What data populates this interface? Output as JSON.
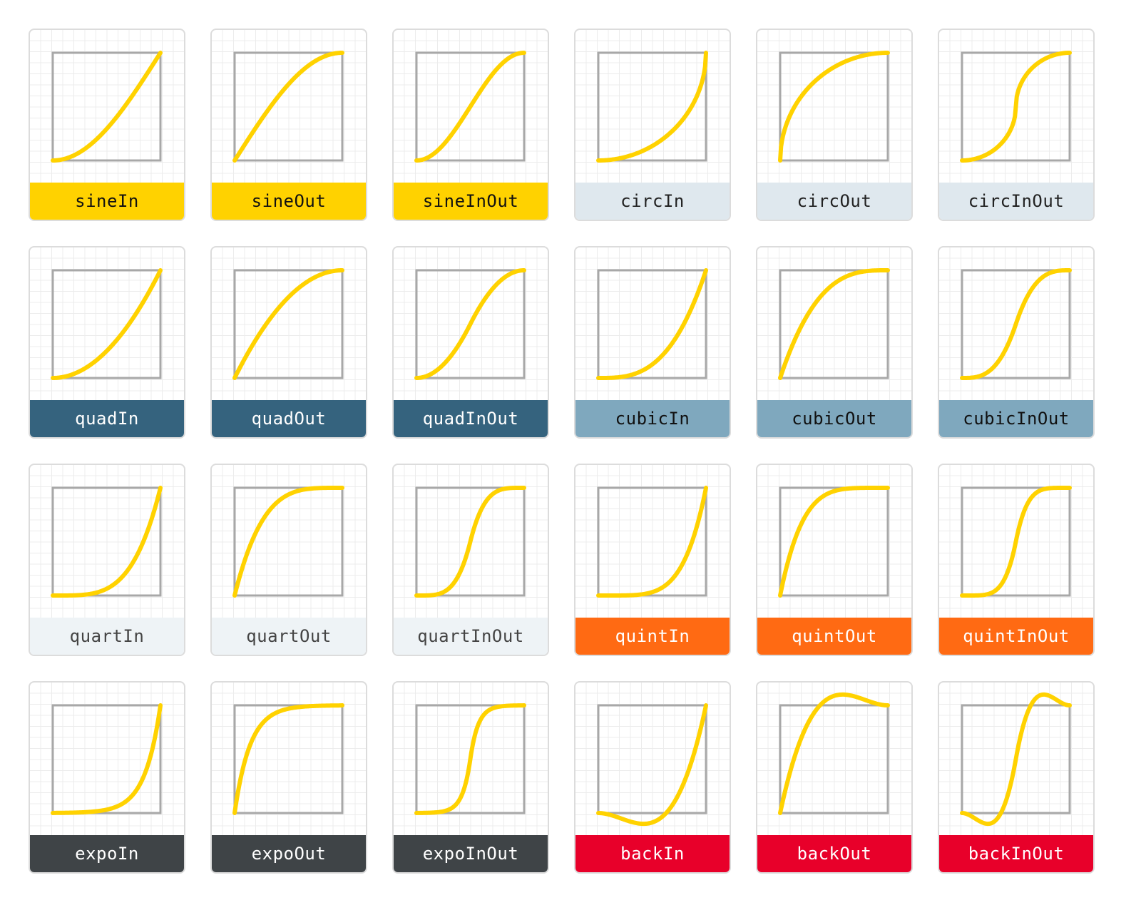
{
  "curve_color": "#FFD200",
  "frame_color": "#A8A8A8",
  "grid_color": "#ECECEC",
  "label_themes": {
    "yellow": {
      "bg": "#FFD200",
      "fg": "#111111"
    },
    "paleblue": {
      "bg": "#DFE8EE",
      "fg": "#222222"
    },
    "navy": {
      "bg": "#35637E",
      "fg": "#FFFFFF"
    },
    "steelblue": {
      "bg": "#7FA8BE",
      "fg": "#111111"
    },
    "ice": {
      "bg": "#EEF3F6",
      "fg": "#444444"
    },
    "orange": {
      "bg": "#FF6A13",
      "fg": "#FFFFFF"
    },
    "charcoal": {
      "bg": "#3F4447",
      "fg": "#FFFFFF"
    },
    "red": {
      "bg": "#E8002A",
      "fg": "#FFFFFF"
    }
  },
  "rows": [
    [
      {
        "name": "sineIn",
        "fn": "sineIn",
        "theme": "yellow"
      },
      {
        "name": "sineOut",
        "fn": "sineOut",
        "theme": "yellow"
      },
      {
        "name": "sineInOut",
        "fn": "sineInOut",
        "theme": "yellow"
      },
      {
        "name": "circIn",
        "fn": "circIn",
        "theme": "paleblue"
      },
      {
        "name": "circOut",
        "fn": "circOut",
        "theme": "paleblue"
      },
      {
        "name": "circInOut",
        "fn": "circInOut",
        "theme": "paleblue"
      }
    ],
    [
      {
        "name": "quadIn",
        "fn": "quadIn",
        "theme": "navy"
      },
      {
        "name": "quadOut",
        "fn": "quadOut",
        "theme": "navy"
      },
      {
        "name": "quadInOut",
        "fn": "quadInOut",
        "theme": "navy"
      },
      {
        "name": "cubicIn",
        "fn": "cubicIn",
        "theme": "steelblue"
      },
      {
        "name": "cubicOut",
        "fn": "cubicOut",
        "theme": "steelblue"
      },
      {
        "name": "cubicInOut",
        "fn": "cubicInOut",
        "theme": "steelblue"
      }
    ],
    [
      {
        "name": "quartIn",
        "fn": "quartIn",
        "theme": "ice"
      },
      {
        "name": "quartOut",
        "fn": "quartOut",
        "theme": "ice"
      },
      {
        "name": "quartInOut",
        "fn": "quartInOut",
        "theme": "ice"
      },
      {
        "name": "quintIn",
        "fn": "quintIn",
        "theme": "orange"
      },
      {
        "name": "quintOut",
        "fn": "quintOut",
        "theme": "orange"
      },
      {
        "name": "quintInOut",
        "fn": "quintInOut",
        "theme": "orange"
      }
    ],
    [
      {
        "name": "expoIn",
        "fn": "expoIn",
        "theme": "charcoal"
      },
      {
        "name": "expoOut",
        "fn": "expoOut",
        "theme": "charcoal"
      },
      {
        "name": "expoInOut",
        "fn": "expoInOut",
        "theme": "charcoal"
      },
      {
        "name": "backIn",
        "fn": "backIn",
        "theme": "red"
      },
      {
        "name": "backOut",
        "fn": "backOut",
        "theme": "red"
      },
      {
        "name": "backInOut",
        "fn": "backInOut",
        "theme": "red"
      }
    ]
  ]
}
